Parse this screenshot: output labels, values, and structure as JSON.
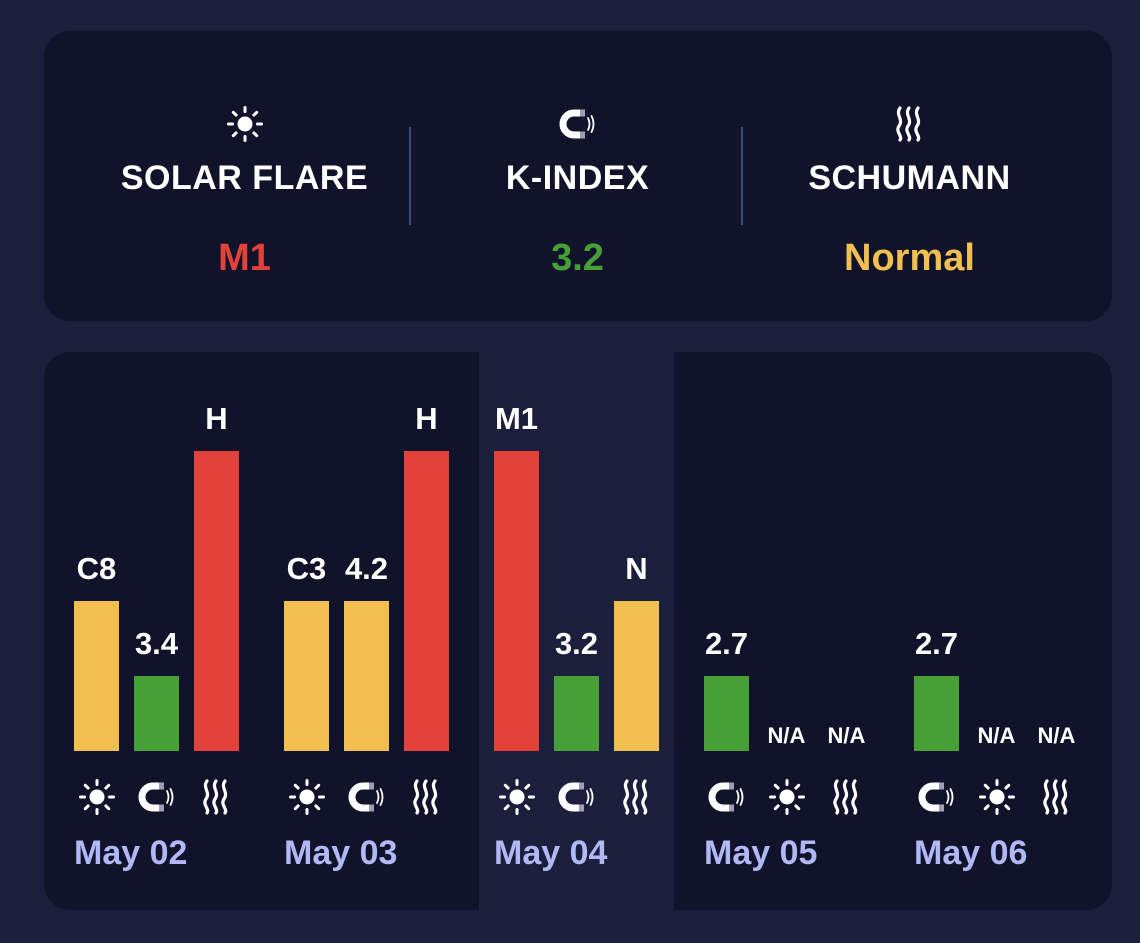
{
  "colors": {
    "page_bg": "#1c1f3b",
    "card_bg": "#11132b",
    "red": "#e2423a",
    "green": "#46a035",
    "yellow": "#f0bf4f",
    "date_text": "#b0b8f6",
    "divider": "#3e4682"
  },
  "summary": [
    {
      "icon": "sun-icon",
      "title": "SOLAR FLARE",
      "value": "M1",
      "color": "#e2423a"
    },
    {
      "icon": "magnet-icon",
      "title": "K-INDEX",
      "value": "3.2",
      "color": "#46a035"
    },
    {
      "icon": "waves-icon",
      "title": "SCHUMANN",
      "value": "Normal",
      "color": "#f0bf4f"
    }
  ],
  "forecast": {
    "selected_day": 2,
    "days": [
      {
        "date": "May 02",
        "bars": [
          {
            "metric": "solar",
            "icon": "sun-icon",
            "label": "C8",
            "level": 0.5,
            "color": "#f0bf4f"
          },
          {
            "metric": "kindex",
            "icon": "magnet-icon",
            "label": "3.4",
            "level": 0.25,
            "color": "#46a035"
          },
          {
            "metric": "schumann",
            "icon": "waves-icon",
            "label": "H",
            "level": 1.0,
            "color": "#e2423a"
          }
        ]
      },
      {
        "date": "May 03",
        "bars": [
          {
            "metric": "solar",
            "icon": "sun-icon",
            "label": "C3",
            "level": 0.5,
            "color": "#f0bf4f"
          },
          {
            "metric": "kindex",
            "icon": "magnet-icon",
            "label": "4.2",
            "level": 0.5,
            "color": "#f0bf4f"
          },
          {
            "metric": "schumann",
            "icon": "waves-icon",
            "label": "H",
            "level": 1.0,
            "color": "#e2423a"
          }
        ]
      },
      {
        "date": "May 04",
        "bars": [
          {
            "metric": "solar",
            "icon": "sun-icon",
            "label": "M1",
            "level": 1.0,
            "color": "#e2423a"
          },
          {
            "metric": "kindex",
            "icon": "magnet-icon",
            "label": "3.2",
            "level": 0.25,
            "color": "#46a035"
          },
          {
            "metric": "schumann",
            "icon": "waves-icon",
            "label": "N",
            "level": 0.5,
            "color": "#f0bf4f"
          }
        ]
      },
      {
        "date": "May 05",
        "bars": [
          {
            "metric": "kindex",
            "icon": "magnet-icon",
            "label": "2.7",
            "level": 0.25,
            "color": "#46a035"
          },
          {
            "metric": "solar",
            "icon": "sun-icon",
            "label": "N/A",
            "level": 0,
            "color": ""
          },
          {
            "metric": "schumann",
            "icon": "waves-icon",
            "label": "N/A",
            "level": 0,
            "color": ""
          }
        ]
      },
      {
        "date": "May 06",
        "bars": [
          {
            "metric": "kindex",
            "icon": "magnet-icon",
            "label": "2.7",
            "level": 0.25,
            "color": "#46a035"
          },
          {
            "metric": "solar",
            "icon": "sun-icon",
            "label": "N/A",
            "level": 0,
            "color": ""
          },
          {
            "metric": "schumann",
            "icon": "waves-icon",
            "label": "N/A",
            "level": 0,
            "color": ""
          }
        ]
      }
    ]
  }
}
